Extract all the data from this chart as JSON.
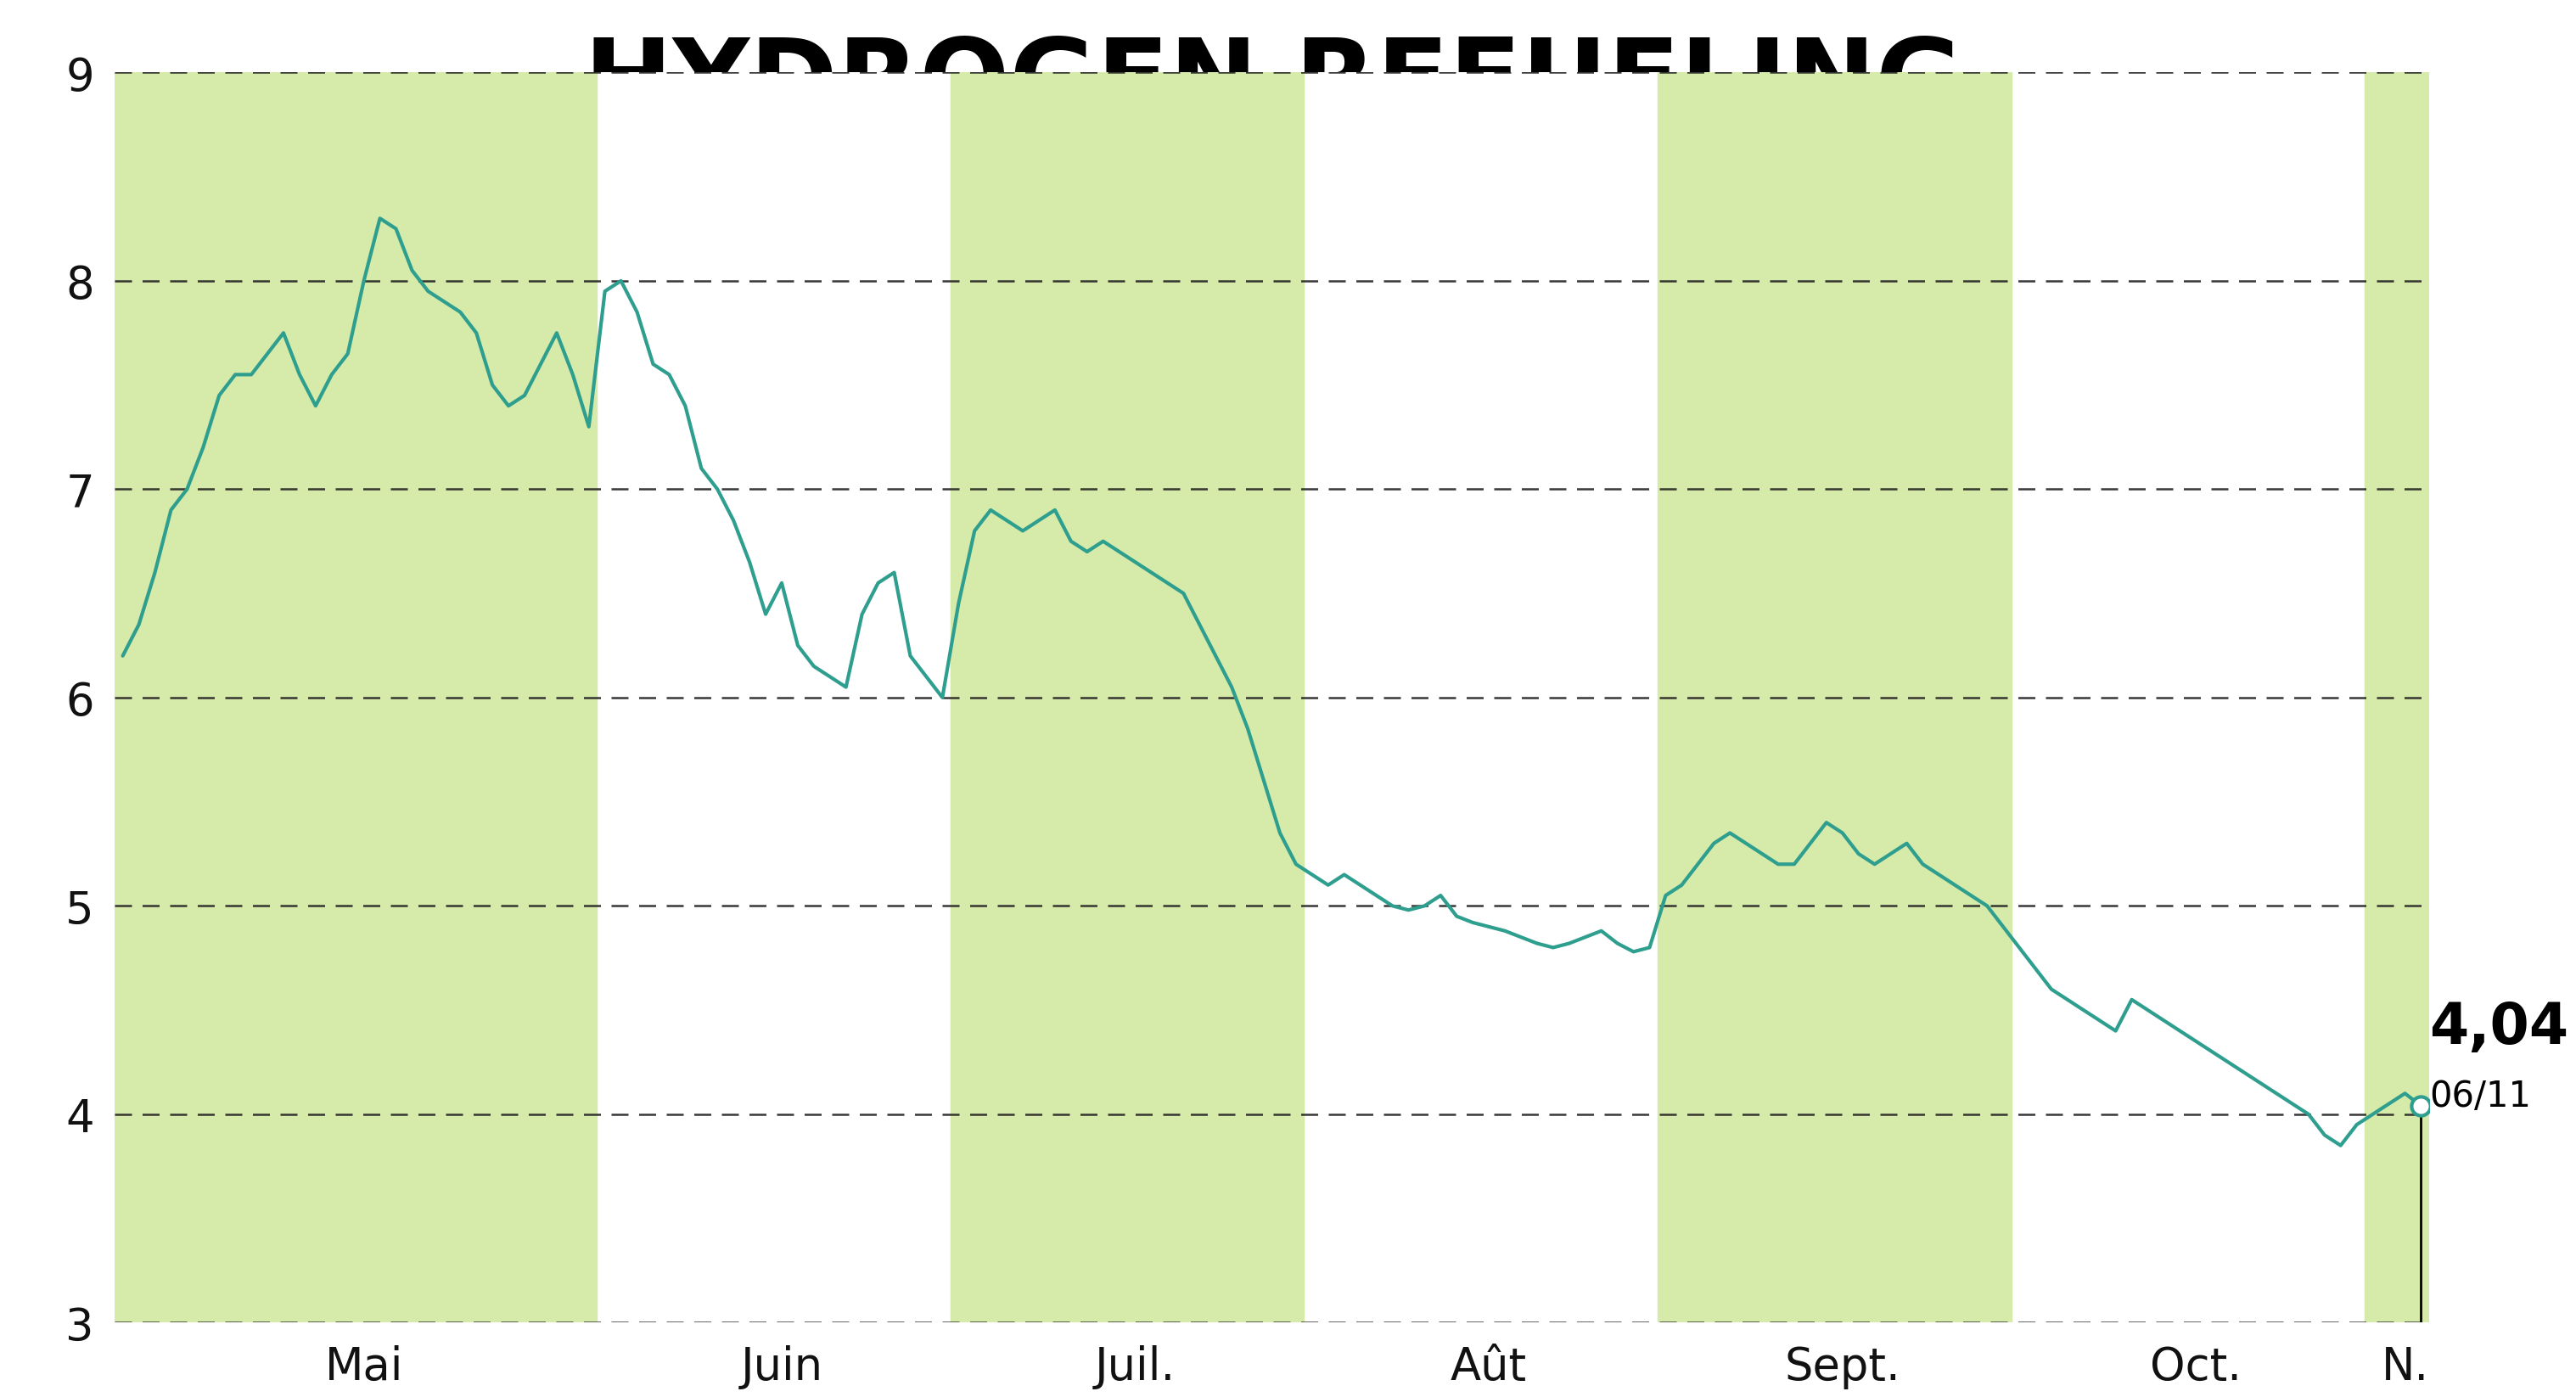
{
  "title": "HYDROGEN REFUELING",
  "title_bg_color": "#c5dea0",
  "chart_bg_color": "#ffffff",
  "band_color": "#d6eaaa",
  "line_color": "#2e9e8e",
  "grid_color": "#222222",
  "annotation_price": "4,04",
  "annotation_date": "06/11",
  "ylim": [
    3,
    9
  ],
  "yticks": [
    3,
    4,
    5,
    6,
    7,
    8,
    9
  ],
  "x_labels": [
    "Mai",
    "Juin",
    "Juil.",
    "Aût",
    "Sept.",
    "Oct.",
    "N."
  ],
  "prices": [
    6.2,
    6.35,
    6.6,
    6.9,
    7.0,
    7.2,
    7.45,
    7.55,
    7.55,
    7.65,
    7.75,
    7.55,
    7.4,
    7.55,
    7.65,
    8.0,
    8.3,
    8.25,
    8.05,
    7.95,
    7.9,
    7.85,
    7.75,
    7.5,
    7.4,
    7.45,
    7.6,
    7.75,
    7.55,
    7.3,
    7.95,
    8.0,
    7.85,
    7.6,
    7.55,
    7.4,
    7.1,
    7.0,
    6.85,
    6.65,
    6.4,
    6.55,
    6.25,
    6.15,
    6.1,
    6.05,
    6.4,
    6.55,
    6.6,
    6.2,
    6.1,
    6.0,
    6.45,
    6.8,
    6.9,
    6.85,
    6.8,
    6.85,
    6.9,
    6.75,
    6.7,
    6.75,
    6.7,
    6.65,
    6.6,
    6.55,
    6.5,
    6.35,
    6.2,
    6.05,
    5.85,
    5.6,
    5.35,
    5.2,
    5.15,
    5.1,
    5.15,
    5.1,
    5.05,
    5.0,
    4.98,
    5.0,
    5.05,
    4.95,
    4.92,
    4.9,
    4.88,
    4.85,
    4.82,
    4.8,
    4.82,
    4.85,
    4.88,
    4.82,
    4.78,
    4.8,
    5.05,
    5.1,
    5.2,
    5.3,
    5.35,
    5.3,
    5.25,
    5.2,
    5.2,
    5.3,
    5.4,
    5.35,
    5.25,
    5.2,
    5.25,
    5.3,
    5.2,
    5.15,
    5.1,
    5.05,
    5.0,
    4.9,
    4.8,
    4.7,
    4.6,
    4.55,
    4.5,
    4.45,
    4.4,
    4.55,
    4.5,
    4.45,
    4.4,
    4.35,
    4.3,
    4.25,
    4.2,
    4.15,
    4.1,
    4.05,
    4.0,
    3.9,
    3.85,
    3.95,
    4.0,
    4.05,
    4.1,
    4.04
  ],
  "n_mai": 30,
  "n_juin": 22,
  "n_juil": 22,
  "n_aout": 22,
  "n_sept": 22,
  "n_oct": 22,
  "n_nov": 4
}
